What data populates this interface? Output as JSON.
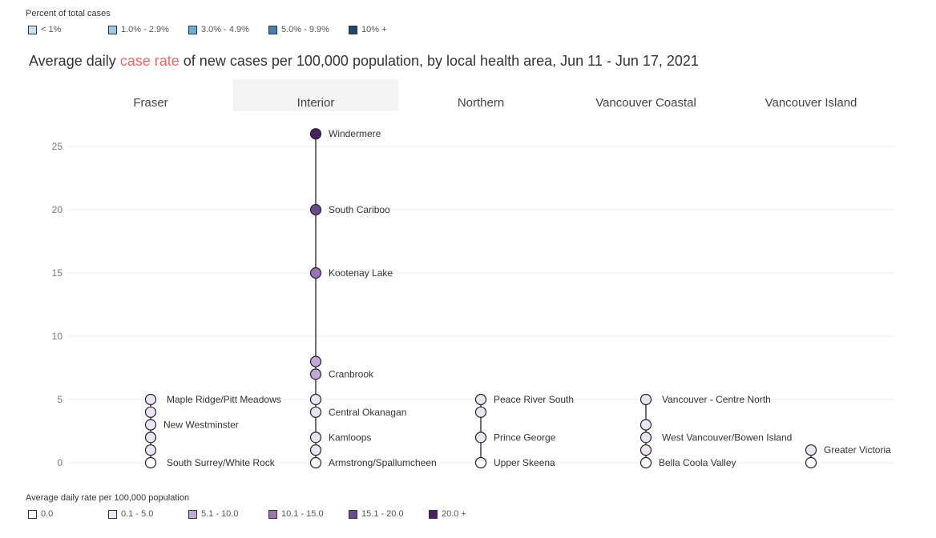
{
  "top_legend": {
    "title": "Percent of total cases",
    "items": [
      {
        "label": "< 1%",
        "color": "#c6e2f3"
      },
      {
        "label": "1.0% - 2.9%",
        "color": "#9ecae1"
      },
      {
        "label": "3.0% - 4.9%",
        "color": "#6baed6"
      },
      {
        "label": "5.0% - 9.9%",
        "color": "#4a7fb3"
      },
      {
        "label": "10% +",
        "color": "#26456e"
      }
    ]
  },
  "title": {
    "prefix": "Average daily ",
    "highlight": "case rate",
    "suffix": " of new cases per 100,000 population, by local health area, Jun 11 - Jun 17, 2021",
    "highlight_color": "#e8696a"
  },
  "bottom_legend": {
    "title": "Average daily rate per  100,000 population",
    "items": [
      {
        "label": "0.0",
        "color": "#ffffff"
      },
      {
        "label": "0.1 - 5.0",
        "color": "#ece4f4"
      },
      {
        "label": "5.1 - 10.0",
        "color": "#c2a8d6"
      },
      {
        "label": "10.1 - 15.0",
        "color": "#9a75b4"
      },
      {
        "label": "15.1 - 20.0",
        "color": "#6b4a8e"
      },
      {
        "label": "20.0 +",
        "color": "#4a2266"
      }
    ]
  },
  "chart_data": {
    "type": "scatter",
    "title": "Average daily case rate of new cases per 100,000 population, by local health area, Jun 11 - Jun 17, 2021",
    "ylim": [
      0,
      25.5
    ],
    "yticks": [
      0,
      5,
      10,
      15,
      20,
      25
    ],
    "grid": true,
    "highlighted_category": "Interior",
    "categories": [
      "Fraser",
      "Interior",
      "Northern",
      "Vancouver Coastal",
      "Vancouver Island"
    ],
    "points": [
      {
        "category": "Fraser",
        "y": 5,
        "label": "Maple Ridge/Pitt Meadows"
      },
      {
        "category": "Fraser",
        "y": 4,
        "label": ""
      },
      {
        "category": "Fraser",
        "y": 3,
        "label": "New Westminster"
      },
      {
        "category": "Fraser",
        "y": 2,
        "label": ""
      },
      {
        "category": "Fraser",
        "y": 1,
        "label": ""
      },
      {
        "category": "Fraser",
        "y": 0,
        "label": "South Surrey/White Rock"
      },
      {
        "category": "Interior",
        "y": 26,
        "label": "Windermere"
      },
      {
        "category": "Interior",
        "y": 20,
        "label": "South Cariboo"
      },
      {
        "category": "Interior",
        "y": 15,
        "label": "Kootenay Lake"
      },
      {
        "category": "Interior",
        "y": 8,
        "label": ""
      },
      {
        "category": "Interior",
        "y": 7,
        "label": "Cranbrook"
      },
      {
        "category": "Interior",
        "y": 5,
        "label": ""
      },
      {
        "category": "Interior",
        "y": 4,
        "label": "Central Okanagan"
      },
      {
        "category": "Interior",
        "y": 2,
        "label": "Kamloops"
      },
      {
        "category": "Interior",
        "y": 1,
        "label": ""
      },
      {
        "category": "Interior",
        "y": 0,
        "label": "Armstrong/Spallumcheen"
      },
      {
        "category": "Northern",
        "y": 5,
        "label": "Peace River South"
      },
      {
        "category": "Northern",
        "y": 4,
        "label": ""
      },
      {
        "category": "Northern",
        "y": 2,
        "label": "Prince George"
      },
      {
        "category": "Northern",
        "y": 0,
        "label": "Upper Skeena"
      },
      {
        "category": "Vancouver Coastal",
        "y": 5,
        "label": "Vancouver - Centre North"
      },
      {
        "category": "Vancouver Coastal",
        "y": 3,
        "label": ""
      },
      {
        "category": "Vancouver Coastal",
        "y": 2,
        "label": "West Vancouver/Bowen Island"
      },
      {
        "category": "Vancouver Coastal",
        "y": 1,
        "label": ""
      },
      {
        "category": "Vancouver Coastal",
        "y": 0,
        "label": "Bella Coola Valley"
      },
      {
        "category": "Vancouver Island",
        "y": 1,
        "label": "Greater Victoria"
      },
      {
        "category": "Vancouver Island",
        "y": 0,
        "label": ""
      }
    ]
  }
}
